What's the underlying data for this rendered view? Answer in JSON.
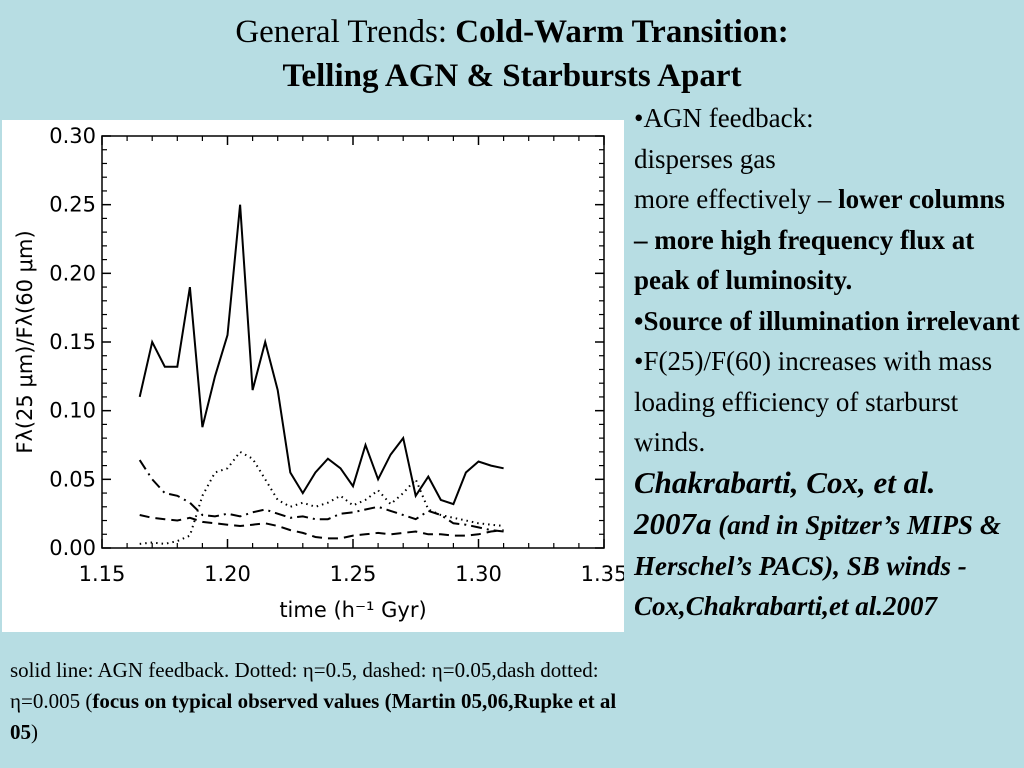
{
  "slide": {
    "title_prefix": "General Trends: ",
    "title_bold_1": "Cold-Warm Transition:",
    "title_bold_2": "Telling AGN & Starbursts Apart"
  },
  "bullets": {
    "b1_plain_1": "•AGN feedback:",
    "b1_plain_2": "disperses gas",
    "b1_plain_3": "more effectively – ",
    "b1_bold": "lower columns – more high frequency flux at peak of luminosity.",
    "b2_bold": "•Source of illumination irrelevant",
    "b3_plain": "•F(25)/F(60) increases with mass loading efficiency of starburst winds.",
    "cite_main": " Chakrabarti, Cox, et al. 2007a",
    "cite_paren": " (and in Spitzer’s MIPS & Herschel’s PACS), SB winds - Cox,Chakrabarti,et al.2007"
  },
  "caption": {
    "part1": "solid line: AGN feedback.  Dotted: η=0.5, dashed: η=0.05,dash dotted: η=0.005 (",
    "bold": "focus on typical observed values (Martin 05,06,Rupke et al 05",
    "part2": ")"
  },
  "chart_data": {
    "type": "line",
    "xlabel": "time (h⁻¹ Gyr)",
    "ylabel": "Fλ(25 μm)/Fλ(60 μm)",
    "xlim": [
      1.15,
      1.35
    ],
    "ylim": [
      0.0,
      0.3
    ],
    "xticks": [
      "1.15",
      "1.20",
      "1.25",
      "1.30",
      "1.35"
    ],
    "yticks": [
      "0.00",
      "0.05",
      "0.10",
      "0.15",
      "0.20",
      "0.25",
      "0.30"
    ],
    "grid": false,
    "x": [
      1.165,
      1.17,
      1.175,
      1.18,
      1.185,
      1.19,
      1.195,
      1.2,
      1.205,
      1.21,
      1.215,
      1.22,
      1.225,
      1.23,
      1.235,
      1.24,
      1.245,
      1.25,
      1.255,
      1.26,
      1.265,
      1.27,
      1.275,
      1.28,
      1.285,
      1.29,
      1.295,
      1.3,
      1.305,
      1.31
    ],
    "series": [
      {
        "style": "solid",
        "values": [
          0.11,
          0.15,
          0.132,
          0.132,
          0.19,
          0.088,
          0.125,
          0.155,
          0.25,
          0.115,
          0.15,
          0.115,
          0.055,
          0.04,
          0.055,
          0.065,
          0.058,
          0.045,
          0.075,
          0.05,
          0.068,
          0.08,
          0.038,
          0.052,
          0.035,
          0.032,
          0.055,
          0.063,
          0.06,
          0.058
        ]
      },
      {
        "style": "dotted",
        "values": [
          0.003,
          0.004,
          0.003,
          0.005,
          0.009,
          0.038,
          0.055,
          0.058,
          0.07,
          0.065,
          0.05,
          0.035,
          0.03,
          0.033,
          0.03,
          0.033,
          0.038,
          0.031,
          0.035,
          0.042,
          0.032,
          0.04,
          0.05,
          0.028,
          0.024,
          0.022,
          0.02,
          0.018,
          0.017,
          0.016
        ]
      },
      {
        "style": "dashed",
        "values": [
          0.024,
          0.022,
          0.021,
          0.02,
          0.022,
          0.019,
          0.018,
          0.017,
          0.016,
          0.017,
          0.018,
          0.016,
          0.013,
          0.011,
          0.008,
          0.007,
          0.007,
          0.009,
          0.01,
          0.011,
          0.01,
          0.011,
          0.012,
          0.01,
          0.01,
          0.009,
          0.009,
          0.01,
          0.012,
          0.013
        ]
      },
      {
        "style": "dashdot",
        "values": [
          0.064,
          0.05,
          0.04,
          0.038,
          0.033,
          0.024,
          0.023,
          0.025,
          0.023,
          0.026,
          0.028,
          0.025,
          0.022,
          0.023,
          0.021,
          0.021,
          0.025,
          0.026,
          0.028,
          0.03,
          0.027,
          0.024,
          0.021,
          0.027,
          0.024,
          0.018,
          0.017,
          0.015,
          0.013,
          0.012
        ]
      }
    ]
  }
}
